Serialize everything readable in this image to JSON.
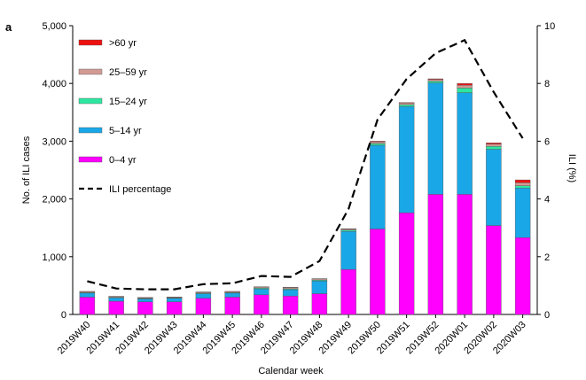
{
  "chart_data": {
    "type": "bar",
    "panel_label": "a",
    "categories": [
      "2019W40",
      "2019W41",
      "2019W42",
      "2019W43",
      "2019W44",
      "2019W45",
      "2019W46",
      "2019W47",
      "2019W48",
      "2019W49",
      "2019W50",
      "2019W51",
      "2019W52",
      "2020W01",
      "2020W02",
      "2020W03"
    ],
    "series": [
      {
        "name": "0–4 yr",
        "color": "#ff00ff",
        "values": [
          300,
          230,
          220,
          220,
          280,
          300,
          340,
          320,
          360,
          780,
          1480,
          1760,
          2080,
          2080,
          1540,
          1330
        ]
      },
      {
        "name": "5–14 yr",
        "color": "#1aa7e8",
        "values": [
          70,
          60,
          50,
          60,
          80,
          70,
          100,
          110,
          220,
          660,
          1450,
          1840,
          1930,
          1760,
          1320,
          860
        ]
      },
      {
        "name": "15–24 yr",
        "color": "#2ee6a0",
        "values": [
          10,
          8,
          8,
          8,
          10,
          10,
          15,
          15,
          15,
          20,
          30,
          30,
          30,
          80,
          50,
          40
        ]
      },
      {
        "name": "25–59 yr",
        "color": "#d29a94",
        "values": [
          15,
          12,
          12,
          12,
          15,
          15,
          20,
          20,
          20,
          20,
          30,
          30,
          30,
          50,
          40,
          50
        ]
      },
      {
        "name": ">60 yr",
        "color": "#ee1111",
        "values": [
          5,
          4,
          4,
          4,
          5,
          5,
          5,
          5,
          5,
          5,
          10,
          10,
          10,
          30,
          20,
          50
        ]
      }
    ],
    "line_series": {
      "name": "ILI percentage",
      "axis": "right",
      "style": "dashed",
      "color": "#000000",
      "values": [
        1.15,
        0.9,
        0.87,
        0.87,
        1.05,
        1.08,
        1.33,
        1.3,
        1.85,
        3.65,
        6.75,
        8.15,
        9.05,
        9.5,
        7.7,
        6.1
      ]
    },
    "xlabel": "Calendar week",
    "ylabel": "No. of ILI cases",
    "y2label": "ILI (%)",
    "ylim": [
      0,
      5000
    ],
    "y2lim": [
      0,
      10
    ],
    "yticks": [
      0,
      1000,
      2000,
      3000,
      4000,
      5000
    ],
    "ytick_labels": [
      "0",
      "1,000",
      "2,000",
      "3,000",
      "4,000",
      "5,000"
    ],
    "y2ticks": [
      0,
      2,
      4,
      6,
      8,
      10
    ],
    "y2tick_labels": [
      "0",
      "2",
      "4",
      "6",
      "8",
      "10"
    ],
    "legend_position": "top-left",
    "legend_order": [
      ">60 yr",
      "25–59 yr",
      "15–24 yr",
      "5–14 yr",
      "0–4 yr",
      "ILI percentage"
    ],
    "grid": false
  }
}
